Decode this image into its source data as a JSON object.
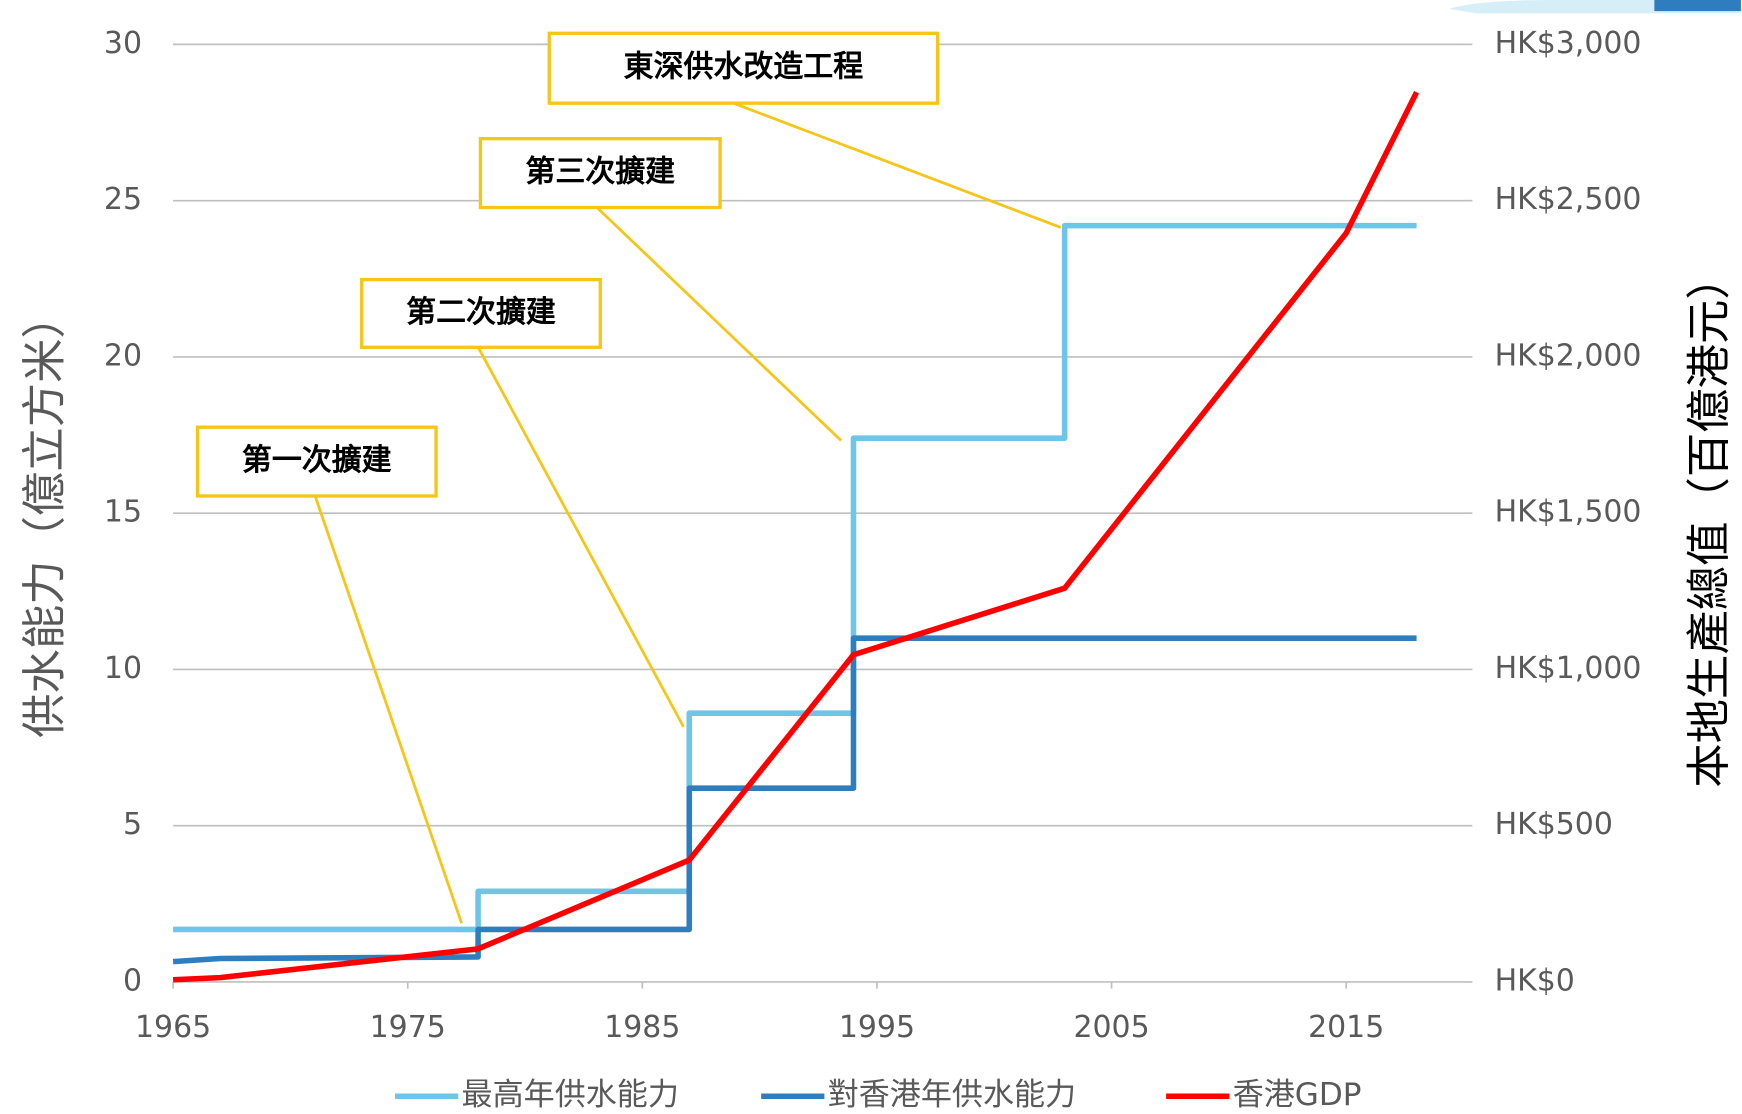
{
  "chart_data": {
    "type": "line",
    "y_label": "供水能力（億立方米）",
    "y2_label": "本地生產總值（百億港元）",
    "xlim": [
      1965,
      2020
    ],
    "xticks": [
      1965,
      1975,
      1985,
      1995,
      2005,
      2015
    ],
    "ylim": [
      0,
      30
    ],
    "yticks": [
      0,
      5,
      10,
      15,
      20,
      25,
      30
    ],
    "y2lim": [
      0,
      3000
    ],
    "y2ticks": [
      {
        "value": 0,
        "label": "HK$0"
      },
      {
        "value": 500,
        "label": "HK$500"
      },
      {
        "value": 1000,
        "label": "HK$1,000"
      },
      {
        "value": 1500,
        "label": "HK$1,500"
      },
      {
        "value": 2000,
        "label": "HK$2,000"
      },
      {
        "value": 2500,
        "label": "HK$2,500"
      },
      {
        "value": 3000,
        "label": "HK$3,000"
      }
    ],
    "grid": true,
    "legend": "bottom",
    "series": [
      {
        "name": "最高年供水能力",
        "color": "#6dc5e8",
        "x": [
          1965,
          1978,
          1978,
          1987,
          1987,
          1994,
          1994,
          2003,
          2003,
          2018
        ],
        "values": [
          1.68,
          1.68,
          2.9,
          2.9,
          8.6,
          8.6,
          17.4,
          17.4,
          24.2,
          24.2
        ]
      },
      {
        "name": "對香港年供水能力",
        "color": "#2e7dbe",
        "x": [
          1965,
          1967,
          1978,
          1978,
          1987,
          1987,
          1994,
          1994,
          2018
        ],
        "values": [
          0.65,
          0.75,
          0.8,
          1.68,
          1.68,
          6.2,
          6.2,
          11,
          11
        ]
      },
      {
        "name": "香港GDP",
        "color": "#ff0000",
        "axis": "y2",
        "x": [
          1965,
          1967,
          1978,
          1987,
          1994,
          2003,
          2015,
          2018
        ],
        "values": [
          7,
          14,
          106,
          390,
          1047,
          1260,
          2396,
          2847
        ]
      }
    ],
    "annotations": [
      "第一次擴建",
      "第二次擴建",
      "第三次擴建",
      "東深供水改造工程"
    ]
  }
}
